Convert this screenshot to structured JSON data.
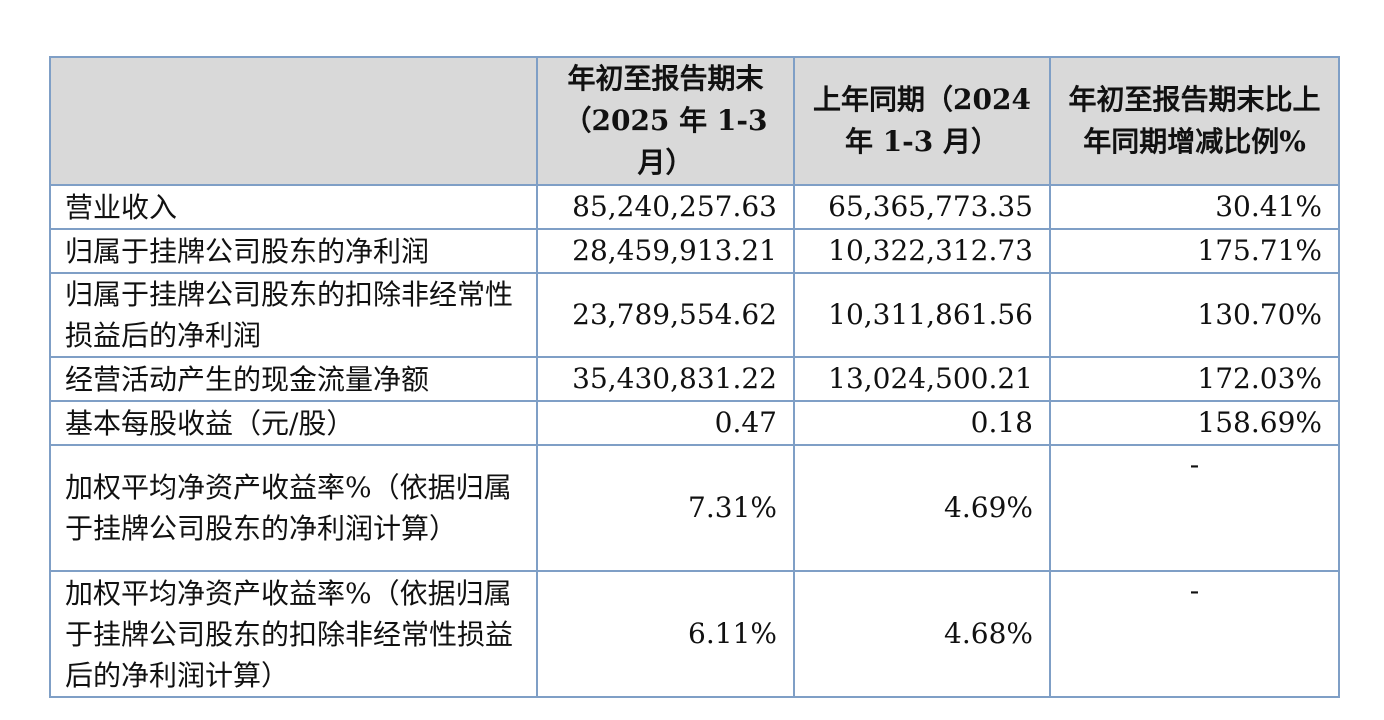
{
  "table": {
    "headers": [
      "",
      "年初至报告期末（2025 年 1-3 月）",
      "上年同期（2024 年 1-3 月）",
      "年初至报告期末比上年同期增减比例%"
    ],
    "rows": [
      {
        "label": "营业收入",
        "current": "85,240,257.63",
        "prior": "65,365,773.35",
        "change": "30.41%"
      },
      {
        "label": "归属于挂牌公司股东的净利润",
        "current": "28,459,913.21",
        "prior": "10,322,312.73",
        "change": "175.71%"
      },
      {
        "label": "归属于挂牌公司股东的扣除非经常性损益后的净利润",
        "current": "23,789,554.62",
        "prior": "10,311,861.56",
        "change": "130.70%"
      },
      {
        "label": "经营活动产生的现金流量净额",
        "current": "35,430,831.22",
        "prior": "13,024,500.21",
        "change": "172.03%"
      },
      {
        "label": "基本每股收益（元/股）",
        "current": "0.47",
        "prior": "0.18",
        "change": "158.69%"
      },
      {
        "label": "加权平均净资产收益率%（依据归属于挂牌公司股东的净利润计算）",
        "current": "7.31%",
        "prior": "4.69%",
        "change": "-"
      },
      {
        "label": "加权平均净资产收益率%（依据归属于挂牌公司股东的扣除非经常性损益后的净利润计算）",
        "current": "6.11%",
        "prior": "4.68%",
        "change": "-"
      }
    ]
  },
  "colors": {
    "border": "#7f9fc6",
    "header_background": "#d9d9d9"
  }
}
